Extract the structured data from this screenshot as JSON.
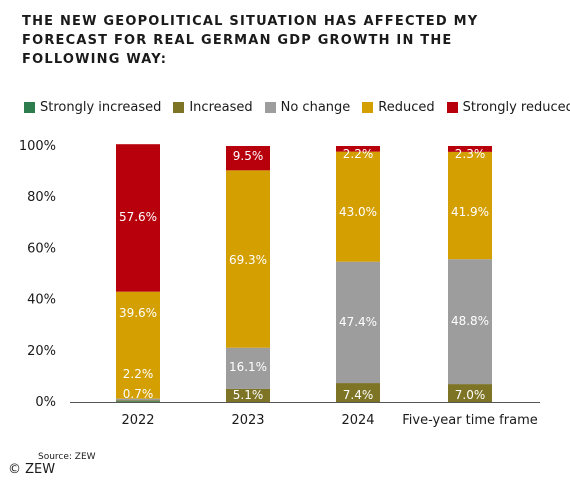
{
  "chart_data": {
    "type": "bar",
    "stacked": true,
    "title": "THE NEW GEOPOLITICAL SITUATION HAS AFFECTED MY FORECAST FOR REAL GERMAN GDP GROWTH IN THE FOLLOWING WAY:",
    "categories": [
      "2022",
      "2023",
      "2024",
      "Five-year time frame"
    ],
    "yticks": [
      "0%",
      "20%",
      "40%",
      "60%",
      "80%",
      "100%"
    ],
    "ylim": [
      0,
      100
    ],
    "grid": false,
    "legend_position": "top",
    "series": [
      {
        "name": "Strongly increased",
        "color": "#2e7d4f",
        "values": [
          0.3,
          0,
          0,
          0
        ],
        "labels": [
          "",
          "",
          "",
          ""
        ]
      },
      {
        "name": "Increased",
        "color": "#7d7426",
        "values": [
          0.3,
          5.1,
          7.4,
          7.0
        ],
        "labels": [
          "",
          "5.1%",
          "7.4%",
          "7.0%"
        ]
      },
      {
        "name": "No change",
        "color": "#9d9d9d",
        "values": [
          0.7,
          16.1,
          47.4,
          48.8
        ],
        "labels": [
          "0.7%",
          "16.1%",
          "47.4%",
          "48.8%"
        ]
      },
      {
        "name": "Reduced",
        "color": "#d49f00",
        "values": [
          41.8,
          69.3,
          43.0,
          41.9
        ],
        "labels": [
          "2.2%|39.6%",
          "69.3%",
          "43.0%",
          "41.9%"
        ]
      },
      {
        "name": "Strongly reduced",
        "color": "#b8000c",
        "values": [
          57.6,
          9.5,
          2.2,
          2.3
        ],
        "labels": [
          "57.6%",
          "9.5%",
          "2.2%",
          "2.3%"
        ]
      }
    ]
  },
  "footer": {
    "source": "Source: ZEW",
    "copyright": "© ZEW"
  }
}
